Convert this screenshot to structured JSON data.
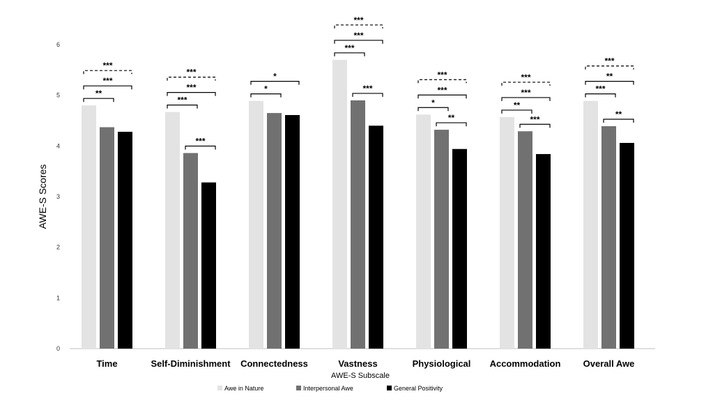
{
  "chart_data": {
    "type": "bar",
    "title": "",
    "xlabel": "AWE-S Subscale",
    "ylabel": "AWE-S Scores",
    "ylim": [
      0,
      6
    ],
    "yticks": [
      "0",
      "1",
      "2",
      "3",
      "4",
      "5",
      "6"
    ],
    "grid": false,
    "legend_position": "bottom",
    "categories": [
      "Time",
      "Self-Diminishment",
      "Connectedness",
      "Vastness",
      "Physiological",
      "Accommodation",
      "Overall Awe"
    ],
    "series": [
      {
        "name": "Awe in Nature",
        "color": "#e3e3e3",
        "values": [
          4.8,
          4.67,
          4.89,
          5.7,
          4.62,
          4.57,
          4.89
        ]
      },
      {
        "name": "Interpersonal Awe",
        "color": "#717171",
        "values": [
          4.37,
          3.86,
          4.65,
          4.9,
          4.32,
          4.29,
          4.39
        ]
      },
      {
        "name": "General Positivity",
        "color": "#000000",
        "values": [
          4.28,
          3.28,
          4.61,
          4.4,
          3.94,
          3.84,
          4.06
        ]
      }
    ],
    "significance": [
      [
        {
          "pair": [
            0,
            2
          ],
          "label": "***",
          "dashed": true
        },
        {
          "pair": [
            0,
            2
          ],
          "label": "***",
          "dashed": false
        },
        {
          "pair": [
            0,
            1
          ],
          "label": "**",
          "dashed": false
        }
      ],
      [
        {
          "pair": [
            0,
            2
          ],
          "label": "***",
          "dashed": true
        },
        {
          "pair": [
            0,
            2
          ],
          "label": "***",
          "dashed": false
        },
        {
          "pair": [
            0,
            1
          ],
          "label": "***",
          "dashed": false
        },
        {
          "pair": [
            1,
            2
          ],
          "label": "***",
          "dashed": false
        }
      ],
      [
        {
          "pair": [
            0,
            2
          ],
          "label": "*",
          "dashed": false
        },
        {
          "pair": [
            0,
            1
          ],
          "label": "*",
          "dashed": false
        }
      ],
      [
        {
          "pair": [
            0,
            2
          ],
          "label": "***",
          "dashed": true
        },
        {
          "pair": [
            0,
            2
          ],
          "label": "***",
          "dashed": false
        },
        {
          "pair": [
            0,
            1
          ],
          "label": "***",
          "dashed": false
        },
        {
          "pair": [
            1,
            2
          ],
          "label": "***",
          "dashed": false
        }
      ],
      [
        {
          "pair": [
            0,
            2
          ],
          "label": "***",
          "dashed": true
        },
        {
          "pair": [
            0,
            2
          ],
          "label": "***",
          "dashed": false
        },
        {
          "pair": [
            0,
            1
          ],
          "label": "*",
          "dashed": false
        },
        {
          "pair": [
            1,
            2
          ],
          "label": "**",
          "dashed": false
        }
      ],
      [
        {
          "pair": [
            0,
            2
          ],
          "label": "***",
          "dashed": true
        },
        {
          "pair": [
            0,
            2
          ],
          "label": "***",
          "dashed": false
        },
        {
          "pair": [
            0,
            1
          ],
          "label": "**",
          "dashed": false
        },
        {
          "pair": [
            1,
            2
          ],
          "label": "***",
          "dashed": false
        }
      ],
      [
        {
          "pair": [
            0,
            2
          ],
          "label": "***",
          "dashed": true
        },
        {
          "pair": [
            0,
            2
          ],
          "label": "**",
          "dashed": false
        },
        {
          "pair": [
            0,
            1
          ],
          "label": "***",
          "dashed": false
        },
        {
          "pair": [
            1,
            2
          ],
          "label": "**",
          "dashed": false
        }
      ]
    ]
  }
}
